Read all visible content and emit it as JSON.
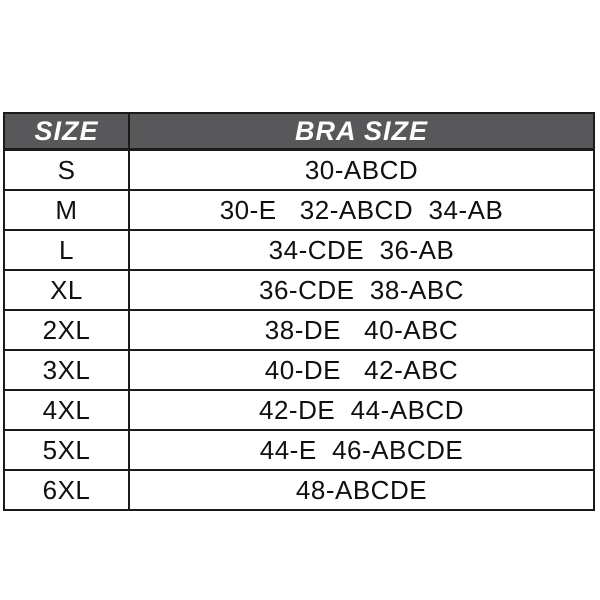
{
  "colors": {
    "header_bg": "#58585a",
    "header_text": "#fcfcfc",
    "body_text": "#101010",
    "border": "#1b1b1b"
  },
  "chart_data": {
    "type": "table",
    "columns": [
      "SIZE",
      "BRA SIZE"
    ],
    "rows": [
      [
        "S",
        "30-ABCD"
      ],
      [
        "M",
        "30-E   32-ABCD  34-AB"
      ],
      [
        "L",
        "34-CDE  36-AB"
      ],
      [
        "XL",
        "36-CDE  38-ABC"
      ],
      [
        "2XL",
        "38-DE   40-ABC"
      ],
      [
        "3XL",
        "40-DE   42-ABC"
      ],
      [
        "4XL",
        "42-DE  44-ABCD"
      ],
      [
        "5XL",
        "44-E  46-ABCDE"
      ],
      [
        "6XL",
        "48-ABCDE"
      ]
    ]
  }
}
